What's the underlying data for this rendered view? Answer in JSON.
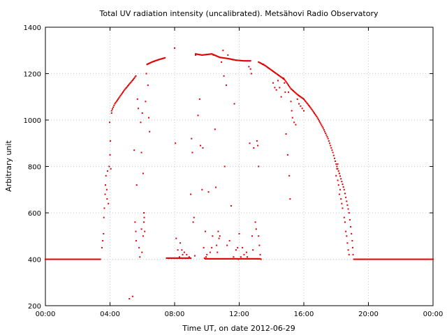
{
  "chart_data": {
    "type": "scatter",
    "title": "Total UV radiation intensity (uncalibrated). Metsähovi Radio Observatory",
    "xlabel": "Time UT, on date 2012-06-29",
    "ylabel": "Arbitrary unit",
    "xlim": [
      0,
      24
    ],
    "ylim": [
      200,
      1400
    ],
    "xticks": [
      0,
      4,
      8,
      12,
      16,
      20,
      24
    ],
    "xtick_labels": [
      "00:00",
      "04:00",
      "08:00",
      "12:00",
      "16:00",
      "20:00",
      "00:00"
    ],
    "yticks": [
      200,
      400,
      600,
      800,
      1000,
      1200,
      1400
    ],
    "ytick_labels": [
      "200",
      "400",
      "600",
      "800",
      "1000",
      "1200",
      "1400"
    ],
    "grid": true,
    "marker_color": "#e00000",
    "series": [
      {
        "name": "",
        "points": [
          [
            3.5,
            450
          ],
          [
            3.55,
            480
          ],
          [
            3.6,
            510
          ],
          [
            3.62,
            580
          ],
          [
            3.65,
            620
          ],
          [
            3.7,
            680
          ],
          [
            3.72,
            720
          ],
          [
            3.75,
            760
          ],
          [
            3.8,
            700
          ],
          [
            3.82,
            660
          ],
          [
            3.85,
            780
          ],
          [
            3.9,
            640
          ],
          [
            3.95,
            800
          ],
          [
            4.0,
            850
          ],
          [
            4.05,
            790
          ],
          [
            4.1,
            1030
          ],
          [
            3.98,
            990
          ],
          [
            4.02,
            910
          ],
          [
            5.2,
            230
          ],
          [
            5.4,
            240
          ],
          [
            5.5,
            870
          ],
          [
            5.55,
            560
          ],
          [
            5.6,
            520
          ],
          [
            5.62,
            480
          ],
          [
            5.65,
            720
          ],
          [
            5.7,
            1090
          ],
          [
            5.75,
            1050
          ],
          [
            5.8,
            450
          ],
          [
            5.85,
            410
          ],
          [
            5.9,
            990
          ],
          [
            5.95,
            860
          ],
          [
            6.0,
            1030
          ],
          [
            6.05,
            770
          ],
          [
            6.1,
            600
          ],
          [
            6.12,
            580
          ],
          [
            6.15,
            520
          ],
          [
            6.2,
            1080
          ],
          [
            6.25,
            1200
          ],
          [
            6.3,
            1240
          ],
          [
            6.35,
            1150
          ],
          [
            6.4,
            1010
          ],
          [
            6.45,
            950
          ],
          [
            5.95,
            530
          ],
          [
            6.05,
            500
          ],
          [
            6.1,
            560
          ],
          [
            5.98,
            430
          ],
          [
            8.0,
            1310
          ],
          [
            8.05,
            900
          ],
          [
            8.1,
            490
          ],
          [
            8.2,
            440
          ],
          [
            8.3,
            410
          ],
          [
            8.35,
            470
          ],
          [
            8.5,
            420
          ],
          [
            8.6,
            430
          ],
          [
            8.9,
            410
          ],
          [
            9.0,
            680
          ],
          [
            9.05,
            920
          ],
          [
            9.1,
            860
          ],
          [
            9.15,
            560
          ],
          [
            9.2,
            580
          ],
          [
            9.3,
            1280
          ],
          [
            9.45,
            1020
          ],
          [
            9.55,
            1090
          ],
          [
            9.6,
            890
          ],
          [
            9.7,
            700
          ],
          [
            9.75,
            880
          ],
          [
            9.8,
            450
          ],
          [
            9.9,
            520
          ],
          [
            9.95,
            410
          ],
          [
            10.0,
            420
          ],
          [
            10.1,
            690
          ],
          [
            10.2,
            430
          ],
          [
            10.3,
            450
          ],
          [
            10.4,
            1280
          ],
          [
            10.5,
            960
          ],
          [
            10.55,
            710
          ],
          [
            10.6,
            460
          ],
          [
            10.7,
            520
          ],
          [
            10.75,
            490
          ],
          [
            10.8,
            500
          ],
          [
            10.9,
            1250
          ],
          [
            11.0,
            1300
          ],
          [
            11.05,
            1190
          ],
          [
            11.1,
            800
          ],
          [
            11.2,
            1150
          ],
          [
            11.3,
            1280
          ],
          [
            11.4,
            480
          ],
          [
            11.5,
            630
          ],
          [
            11.6,
            1260
          ],
          [
            11.7,
            1070
          ],
          [
            11.8,
            440
          ],
          [
            11.9,
            450
          ],
          [
            12.0,
            510
          ],
          [
            12.1,
            410
          ],
          [
            12.2,
            450
          ],
          [
            12.3,
            420
          ],
          [
            12.5,
            410
          ],
          [
            12.6,
            1230
          ],
          [
            12.65,
            900
          ],
          [
            12.7,
            1220
          ],
          [
            12.75,
            1200
          ],
          [
            12.9,
            880
          ],
          [
            13.0,
            560
          ],
          [
            13.05,
            530
          ],
          [
            13.1,
            910
          ],
          [
            13.15,
            890
          ],
          [
            13.2,
            800
          ],
          [
            13.25,
            460
          ],
          [
            13.3,
            420
          ],
          [
            13.35,
            400
          ],
          [
            12.85,
            440
          ],
          [
            12.45,
            430
          ],
          [
            11.95,
            400
          ],
          [
            11.65,
            410
          ],
          [
            11.25,
            460
          ],
          [
            10.65,
            430
          ],
          [
            10.35,
            500
          ],
          [
            9.85,
            405
          ],
          [
            9.25,
            415
          ],
          [
            8.75,
            420
          ],
          [
            8.45,
            440
          ],
          [
            12.8,
            500
          ],
          [
            13.2,
            500
          ],
          [
            13.5,
            1240
          ],
          [
            14.1,
            1160
          ],
          [
            14.2,
            1140
          ],
          [
            14.3,
            1130
          ],
          [
            14.4,
            1170
          ],
          [
            14.5,
            1140
          ],
          [
            14.6,
            1100
          ],
          [
            14.75,
            1180
          ],
          [
            14.8,
            1160
          ],
          [
            14.85,
            1120
          ],
          [
            14.9,
            940
          ],
          [
            15.0,
            850
          ],
          [
            15.05,
            1120
          ],
          [
            15.1,
            760
          ],
          [
            15.15,
            660
          ],
          [
            15.2,
            1080
          ],
          [
            15.25,
            1040
          ],
          [
            15.3,
            1010
          ],
          [
            15.4,
            990
          ],
          [
            15.5,
            980
          ],
          [
            15.6,
            1090
          ],
          [
            15.7,
            1070
          ],
          [
            15.8,
            1060
          ],
          [
            15.9,
            1050
          ],
          [
            16.0,
            1040
          ],
          [
            18.0,
            760
          ],
          [
            18.05,
            790
          ],
          [
            18.1,
            740
          ],
          [
            18.15,
            720
          ],
          [
            18.2,
            680
          ],
          [
            18.25,
            700
          ],
          [
            18.3,
            660
          ],
          [
            18.35,
            640
          ],
          [
            18.4,
            620
          ],
          [
            18.5,
            580
          ],
          [
            18.55,
            560
          ],
          [
            18.6,
            520
          ],
          [
            18.65,
            500
          ],
          [
            18.7,
            470
          ],
          [
            18.75,
            440
          ],
          [
            18.8,
            420
          ],
          [
            18.1,
            810
          ],
          [
            18.2,
            770
          ]
        ],
        "curves": [
          {
            "segment": "night-baseline",
            "from_to": [
              [
                0,
                400
              ],
              [
                3.4,
                400
              ]
            ]
          },
          {
            "segment": "morning-rise",
            "points": [
              [
                4.1,
                1040
              ],
              [
                4.3,
                1070
              ],
              [
                4.6,
                1100
              ],
              [
                4.9,
                1130
              ],
              [
                5.2,
                1155
              ],
              [
                5.5,
                1180
              ],
              [
                5.6,
                1190
              ]
            ]
          },
          {
            "segment": "morning-upper",
            "points": [
              [
                6.3,
                1240
              ],
              [
                6.6,
                1250
              ],
              [
                7.0,
                1260
              ],
              [
                7.4,
                1268
              ]
            ]
          },
          {
            "segment": "near-zero",
            "from_to": [
              [
                7.5,
                405
              ],
              [
                9.0,
                405
              ]
            ]
          },
          {
            "segment": "midday-top",
            "points": [
              [
                9.3,
                1285
              ],
              [
                9.7,
                1280
              ],
              [
                10.3,
                1285
              ],
              [
                10.8,
                1270
              ],
              [
                11.3,
                1265
              ],
              [
                11.8,
                1258
              ],
              [
                12.3,
                1255
              ],
              [
                12.7,
                1255
              ]
            ]
          },
          {
            "segment": "midday-floor",
            "from_to": [
              [
                9.9,
                402
              ],
              [
                13.3,
                402
              ]
            ]
          },
          {
            "segment": "afternoon-decline",
            "points": [
              [
                13.2,
                1250
              ],
              [
                13.6,
                1235
              ],
              [
                14.0,
                1215
              ],
              [
                14.4,
                1195
              ],
              [
                14.8,
                1175
              ],
              [
                15.2,
                1135
              ],
              [
                15.6,
                1110
              ],
              [
                16.0,
                1090
              ],
              [
                16.4,
                1055
              ],
              [
                16.8,
                1015
              ],
              [
                17.2,
                965
              ],
              [
                17.5,
                920
              ],
              [
                17.8,
                860
              ],
              [
                18.0,
                810
              ],
              [
                18.2,
                770
              ],
              [
                18.5,
                700
              ],
              [
                18.8,
                600
              ],
              [
                19.0,
                480
              ],
              [
                19.05,
                420
              ]
            ]
          },
          {
            "segment": "evening-baseline",
            "from_to": [
              [
                19.1,
                400
              ],
              [
                24,
                400
              ]
            ]
          }
        ]
      }
    ]
  }
}
